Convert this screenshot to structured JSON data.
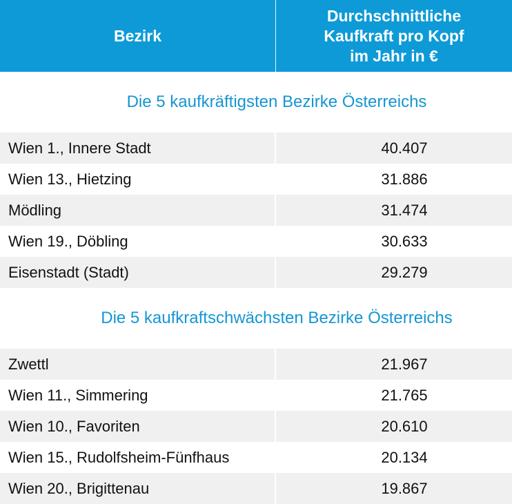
{
  "header": {
    "col1": "Bezirk",
    "col2": "Durchschnittliche\nKaufkraft pro Kopf\nim Jahr in €"
  },
  "colors": {
    "header_bg": "#0E9AD7",
    "section_title": "#1596D2",
    "row_alt": "#F0F0F0"
  },
  "sections": [
    {
      "title": "Die 5 kaufkräftigsten Bezirke Österreichs",
      "rows": [
        {
          "bezirk": "Wien 1., Innere Stadt",
          "value": "40.407"
        },
        {
          "bezirk": "Wien 13., Hietzing",
          "value": "31.886"
        },
        {
          "bezirk": "Mödling",
          "value": "31.474"
        },
        {
          "bezirk": "Wien 19., Döbling",
          "value": "30.633"
        },
        {
          "bezirk": "Eisenstadt (Stadt)",
          "value": "29.279"
        }
      ]
    },
    {
      "title": "Die 5 kaufkraftschwächsten Bezirke Österreichs",
      "rows": [
        {
          "bezirk": "Zwettl",
          "value": "21.967"
        },
        {
          "bezirk": "Wien 11., Simmering",
          "value": "21.765"
        },
        {
          "bezirk": "Wien 10., Favoriten",
          "value": "20.610"
        },
        {
          "bezirk": "Wien 15., Rudolfsheim-Fünfhaus",
          "value": "20.134"
        },
        {
          "bezirk": "Wien 20., Brigittenau",
          "value": "19.867"
        }
      ]
    }
  ]
}
